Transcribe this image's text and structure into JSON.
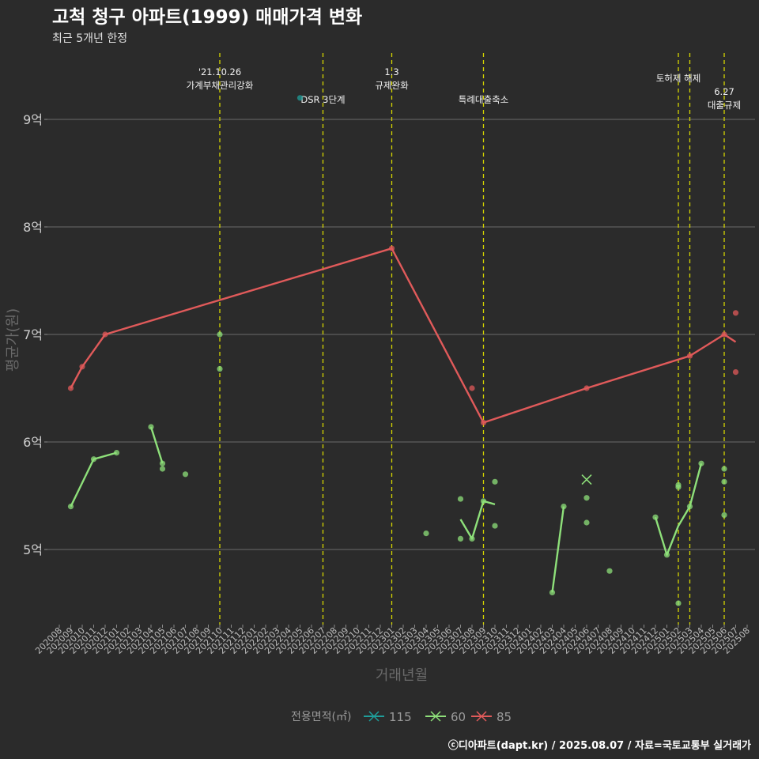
{
  "chart_data": {
    "type": "line",
    "title": "고척 청구 아파트(1999) 매매가격 변화",
    "subtitle": "최근 5개년 한정",
    "xlabel": "거래년월",
    "ylabel": "평균가(원)",
    "ylim": [
      4.3,
      9.7
    ],
    "yticks": [
      {
        "v": 5,
        "label": "5억"
      },
      {
        "v": 6,
        "label": "6억"
      },
      {
        "v": 7,
        "label": "7억"
      },
      {
        "v": 8,
        "label": "8억"
      },
      {
        "v": 9,
        "label": "9억"
      }
    ],
    "categories": [
      "202008",
      "202009",
      "202010",
      "202011",
      "202012",
      "202101",
      "202102",
      "202103",
      "202104",
      "202105",
      "202106",
      "202107",
      "202108",
      "202109",
      "202110",
      "202111",
      "202112",
      "202201",
      "202202",
      "202203",
      "202204",
      "202205",
      "202206",
      "202207",
      "202208",
      "202209",
      "202210",
      "202211",
      "202212",
      "202301",
      "202302",
      "202303",
      "202304",
      "202305",
      "202306",
      "202307",
      "202308",
      "202309",
      "202310",
      "202311",
      "202312",
      "202401",
      "202402",
      "202403",
      "202404",
      "202405",
      "202406",
      "202407",
      "202408",
      "202409",
      "202410",
      "202411",
      "202412",
      "202501",
      "202502",
      "202503",
      "202504",
      "202505",
      "202506",
      "202507",
      "202508"
    ],
    "legend": {
      "title": "전용면적(㎡)",
      "items": [
        {
          "label": "115",
          "color": "#1f9e9a"
        },
        {
          "label": "60",
          "color": "#8ee07a"
        },
        {
          "label": "85",
          "color": "#e05a5a"
        }
      ]
    },
    "series": [
      {
        "name": "85",
        "color": "#e05a5a",
        "line": [
          [
            "202009",
            6.5
          ],
          [
            "202010",
            6.7
          ],
          [
            "202012",
            7.0
          ],
          [
            "202301",
            7.8
          ],
          [
            "202309",
            6.18
          ],
          [
            "202406",
            6.5
          ],
          [
            "202503",
            6.8
          ],
          [
            "202506",
            7.0
          ],
          [
            "202507",
            6.93
          ]
        ],
        "points": [
          [
            "202009",
            6.5
          ],
          [
            "202010",
            6.7
          ],
          [
            "202012",
            7.0
          ],
          [
            "202301",
            7.8
          ],
          [
            "202308",
            6.5
          ],
          [
            "202309",
            6.18
          ],
          [
            "202406",
            6.5
          ],
          [
            "202503",
            6.8
          ],
          [
            "202506",
            7.0
          ],
          [
            "202507",
            7.2
          ],
          [
            "202507",
            6.65
          ]
        ]
      },
      {
        "name": "60",
        "color": "#8ee07a",
        "segments": [
          [
            [
              "202009",
              5.4
            ],
            [
              "202011",
              5.84
            ],
            [
              "202101",
              5.9
            ]
          ],
          [
            [
              "202104",
              6.14
            ],
            [
              "202105",
              5.8
            ]
          ],
          [
            [
              "202307",
              5.28
            ],
            [
              "202308",
              5.1
            ],
            [
              "202309",
              5.45
            ],
            [
              "202310",
              5.42
            ]
          ],
          [
            [
              "202403",
              4.6
            ],
            [
              "202404",
              5.4
            ]
          ],
          [
            [
              "202412",
              5.3
            ],
            [
              "202501",
              4.95
            ],
            [
              "202502",
              5.22
            ],
            [
              "202503",
              5.4
            ],
            [
              "202504",
              5.8
            ]
          ]
        ],
        "points": [
          [
            "202009",
            5.4
          ],
          [
            "202011",
            5.84
          ],
          [
            "202101",
            5.9
          ],
          [
            "202104",
            6.14
          ],
          [
            "202105",
            5.8
          ],
          [
            "202105",
            5.75
          ],
          [
            "202107",
            5.7
          ],
          [
            "202110",
            7.0
          ],
          [
            "202110",
            6.68
          ],
          [
            "202304",
            5.15
          ],
          [
            "202307",
            5.47
          ],
          [
            "202307",
            5.1
          ],
          [
            "202308",
            5.1
          ],
          [
            "202309",
            5.45
          ],
          [
            "202310",
            5.63
          ],
          [
            "202310",
            5.22
          ],
          [
            "202403",
            4.6
          ],
          [
            "202404",
            5.4
          ],
          [
            "202406",
            5.48
          ],
          [
            "202406",
            5.25
          ],
          [
            "202408",
            4.8
          ],
          [
            "202412",
            5.3
          ],
          [
            "202501",
            4.95
          ],
          [
            "202502",
            5.6
          ],
          [
            "202502",
            5.58
          ],
          [
            "202502",
            4.5
          ],
          [
            "202503",
            5.4
          ],
          [
            "202504",
            5.8
          ],
          [
            "202506",
            5.75
          ],
          [
            "202506",
            5.63
          ],
          [
            "202506",
            5.32
          ]
        ],
        "cross": [
          [
            "202406",
            5.65
          ]
        ]
      },
      {
        "name": "115",
        "color": "#1f9e9a",
        "points": [
          [
            "202205",
            9.2
          ]
        ]
      }
    ],
    "annotations": [
      {
        "x": "202110",
        "lines": [
          "'21.10.26",
          "가계부채관리강화"
        ],
        "row": 0
      },
      {
        "x": "202207",
        "lines": [
          "DSR 3단계"
        ],
        "row": 2
      },
      {
        "x": "202301",
        "lines": [
          "1.3",
          "규제완화"
        ],
        "row": 0
      },
      {
        "x": "202309",
        "lines": [
          "특례대출축소"
        ],
        "row": 2
      },
      {
        "x": "202502",
        "lines": [
          "토허제 해제"
        ],
        "row": 1
      },
      {
        "x": "202503",
        "lines": [],
        "row": 1
      },
      {
        "x": "202506",
        "lines": [
          "6.27",
          "대출규제"
        ],
        "row": 3
      }
    ]
  },
  "footer": "ⓒ디아파트(dapt.kr) / 2025.08.07 / 자료=국토교통부 실거래가"
}
